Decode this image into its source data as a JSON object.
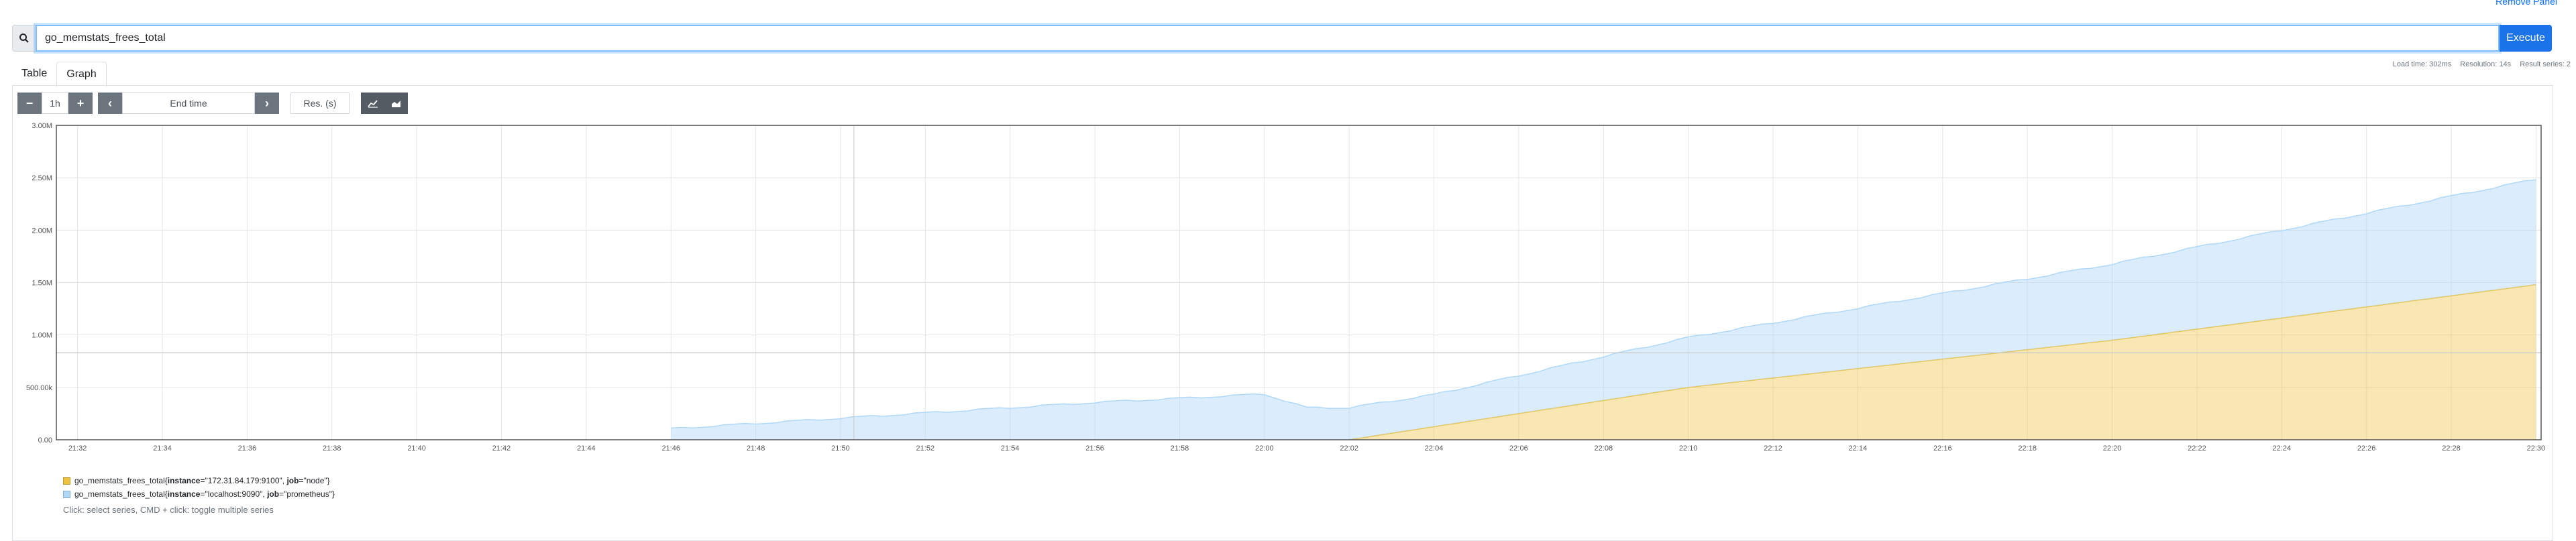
{
  "panel": {
    "remove_label": "Remove Panel"
  },
  "expression": {
    "value": "go_memstats_frees_total",
    "execute_label": "Execute"
  },
  "tabs": [
    {
      "label": "Table",
      "active": false
    },
    {
      "label": "Graph",
      "active": true
    }
  ],
  "stats": {
    "load_time": "Load time: 302ms",
    "resolution": "Resolution: 14s",
    "result_series": "Result series: 2"
  },
  "controls": {
    "decrease": "−",
    "range": "1h",
    "increase": "+",
    "back": "‹",
    "end_time_placeholder": "End time",
    "forward": "›",
    "resolution_placeholder": "Res. (s)",
    "line_icon": "line-chart-icon",
    "stacked_icon": "stacked-chart-icon"
  },
  "colors": {
    "series_node": "#edc240",
    "series_prometheus": "#afd8f8",
    "accent": "#1a73e8"
  },
  "chart_data": {
    "type": "area",
    "stacked": true,
    "ylim": [
      0,
      3000000
    ],
    "y_ticks": [
      "0.00",
      "500.00k",
      "1.00M",
      "1.50M",
      "2.00M",
      "2.50M",
      "3.00M"
    ],
    "x_ticks": [
      "21:32",
      "21:34",
      "21:36",
      "21:38",
      "21:40",
      "21:42",
      "21:44",
      "21:46",
      "21:48",
      "21:50",
      "21:52",
      "21:54",
      "21:56",
      "21:58",
      "22:00",
      "22:02",
      "22:04",
      "22:06",
      "22:08",
      "22:10",
      "22:12",
      "22:14",
      "22:16",
      "22:18",
      "22:20",
      "22:22",
      "22:24",
      "22:26",
      "22:28",
      "22:30"
    ],
    "series": [
      {
        "name": "go_memstats_frees_total{instance=\"172.31.84.179:9100\", job=\"node\"}",
        "label_metric": "go_memstats_frees_total",
        "label_pairs": [
          {
            "key": "instance",
            "value": "\"172.31.84.179:9100\""
          },
          {
            "key": "job",
            "value": "\"node\""
          }
        ],
        "color": "#edc240",
        "points": [
          [
            "22:02",
            0
          ],
          [
            "22:10",
            500000
          ],
          [
            "22:20",
            950000
          ],
          [
            "22:30",
            1480000
          ]
        ]
      },
      {
        "name": "go_memstats_frees_total{instance=\"localhost:9090\", job=\"prometheus\"}",
        "label_metric": "go_memstats_frees_total",
        "label_pairs": [
          {
            "key": "instance",
            "value": "\"localhost:9090\""
          },
          {
            "key": "job",
            "value": "\"prometheus\""
          }
        ],
        "color": "#afd8f8",
        "points": [
          [
            "21:46",
            100000
          ],
          [
            "21:48",
            150000
          ],
          [
            "21:50",
            200000
          ],
          [
            "21:52",
            250000
          ],
          [
            "21:54",
            300000
          ],
          [
            "21:56",
            350000
          ],
          [
            "21:58",
            390000
          ],
          [
            "22:00",
            430000
          ],
          [
            "22:01",
            300000
          ],
          [
            "22:04",
            300000
          ],
          [
            "22:10",
            470000
          ],
          [
            "22:20",
            720000
          ],
          [
            "22:30",
            1000000
          ]
        ]
      }
    ],
    "crosshair_y": 830000
  },
  "legend": {
    "hint": "Click: select series, CMD + click: toggle multiple series"
  }
}
